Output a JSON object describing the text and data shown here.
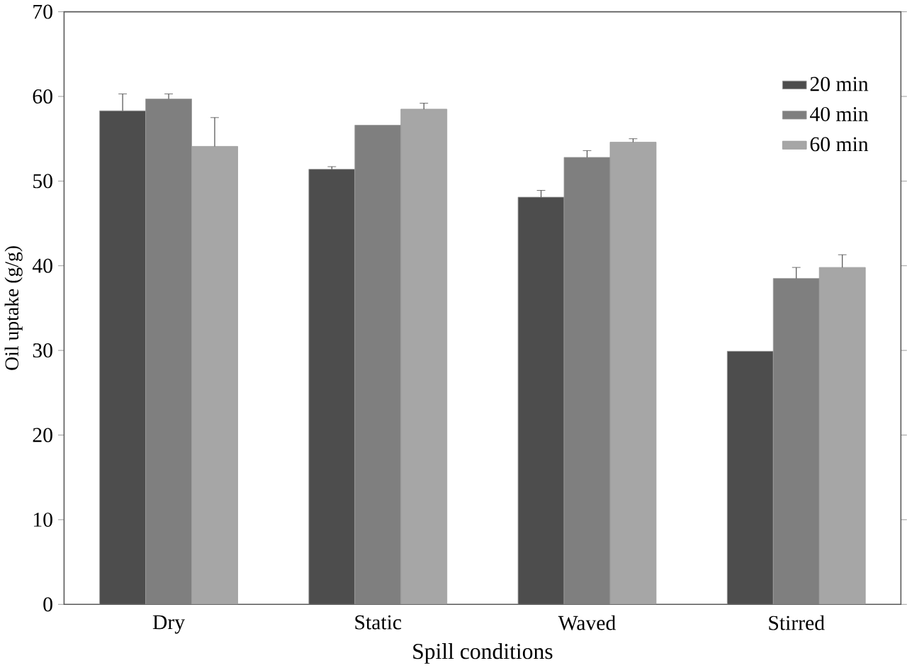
{
  "chart_data": {
    "type": "bar",
    "xlabel": "Spill conditions",
    "ylabel": "Oil uptake (g/g)",
    "categories": [
      "Dry",
      "Static",
      "Waved",
      "Stirred"
    ],
    "series": [
      {
        "name": "20 min",
        "color": "#4d4d4d",
        "values": [
          58.3,
          51.4,
          48.1,
          29.9
        ],
        "errors": [
          2.0,
          0.3,
          0.8,
          null
        ]
      },
      {
        "name": "40 min",
        "color": "#7f7f7f",
        "values": [
          59.7,
          56.6,
          52.8,
          38.5
        ],
        "errors": [
          0.6,
          null,
          0.8,
          1.3
        ]
      },
      {
        "name": "60 min",
        "color": "#a6a6a6",
        "values": [
          54.1,
          58.5,
          54.6,
          39.8
        ],
        "errors": [
          3.4,
          0.7,
          0.4,
          1.5
        ]
      }
    ],
    "ylim": [
      0,
      70
    ],
    "yticks": [
      0,
      10,
      20,
      30,
      40,
      50,
      60,
      70
    ],
    "grid": false,
    "legend": "top right"
  }
}
